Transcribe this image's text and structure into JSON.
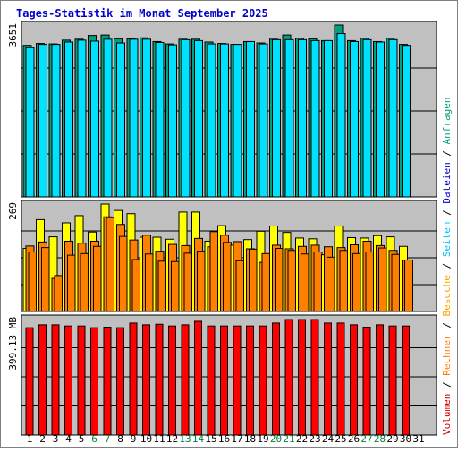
{
  "chart_data": {
    "type": "bar",
    "title": "Tages-Statistik im Monat September 2025",
    "categories": [
      "1",
      "2",
      "3",
      "4",
      "5",
      "6",
      "7",
      "8",
      "9",
      "10",
      "11",
      "12",
      "13",
      "14",
      "15",
      "16",
      "17",
      "18",
      "19",
      "20",
      "21",
      "22",
      "23",
      "24",
      "25",
      "26",
      "27",
      "28",
      "29",
      "30",
      "31"
    ],
    "weekend_days": [
      "6",
      "7",
      "13",
      "14",
      "20",
      "21",
      "27",
      "28"
    ],
    "panels": [
      {
        "name": "anfragen-dateien",
        "max_label": "3651",
        "ymax": 3651,
        "series": [
          {
            "name": "Anfragen",
            "color": "#00A080",
            "values": [
              3220,
              3260,
              3250,
              3330,
              3350,
              3430,
              3440,
              3360,
              3360,
              3380,
              3300,
              3250,
              3350,
              3350,
              3290,
              3260,
              3240,
              3300,
              3270,
              3350,
              3440,
              3370,
              3360,
              3320,
              3651,
              3320,
              3370,
              3300,
              3370,
              3240,
              null
            ]
          },
          {
            "name": "Dateien",
            "color": "#00E0FF",
            "values": [
              3170,
              3240,
              3240,
              3290,
              3330,
              3310,
              3350,
              3270,
              3350,
              3350,
              3280,
              3230,
              3340,
              3320,
              3250,
              3250,
              3240,
              3300,
              3250,
              3340,
              3340,
              3340,
              3320,
              3320,
              3470,
              3300,
              3340,
              3290,
              3340,
              3220,
              null
            ]
          }
        ]
      },
      {
        "name": "seiten-besuche-rechner",
        "max_label": "269",
        "ymax": 269,
        "series": [
          {
            "name": "Seiten",
            "color": "#FFFF00",
            "values": [
              158,
              230,
              187,
              222,
              240,
              199,
              269,
              253,
              245,
              186,
              186,
              181,
              249,
              249,
              176,
              215,
              166,
              180,
              201,
              214,
              198,
              184,
              182,
              142,
              214,
              185,
              184,
              190,
              187,
              163,
              null
            ]
          },
          {
            "name": "Besuche",
            "color": "#FF8000",
            "values": [
              164,
              174,
              83,
              176,
              171,
              176,
              237,
              218,
              179,
              191,
              151,
              168,
              165,
              183,
              162,
              191,
              175,
              157,
              123,
              166,
              157,
              163,
              166,
              162,
              160,
              167,
              176,
              165,
              153,
              128,
              null
            ]
          },
          {
            "name": "Rechner",
            "color": "#FF8000",
            "values": [
              149,
              160,
              90,
              141,
              145,
              163,
              235,
              188,
              130,
              144,
              126,
              125,
              146,
              151,
              200,
              173,
              127,
              156,
              145,
              158,
              153,
              144,
              149,
              136,
              153,
              145,
              149,
              159,
              143,
              129,
              null
            ]
          }
        ]
      },
      {
        "name": "volumen",
        "max_label": "399.13 MB",
        "ymax": 399.13,
        "series": [
          {
            "name": "Volumen",
            "color": "#FF0000",
            "values": [
              368,
              378,
              378,
              374,
              374,
              368,
              370,
              368,
              384,
              378,
              380,
              374,
              378,
              390,
              374,
              374,
              374,
              374,
              374,
              384,
              396,
              396,
              396,
              384,
              384,
              378,
              370,
              378,
              374,
              374,
              null
            ]
          }
        ]
      }
    ],
    "legend_right": [
      {
        "label": "Volumen",
        "color": "#CC0000"
      },
      {
        "label": "/",
        "color": "#000000"
      },
      {
        "label": "Rechner",
        "color": "#FF8000"
      },
      {
        "label": "/",
        "color": "#000000"
      },
      {
        "label": "Besuche",
        "color": "#FFA000"
      },
      {
        "label": "/",
        "color": "#000000"
      },
      {
        "label": "Seiten",
        "color": "#00C0FF"
      },
      {
        "label": "/",
        "color": "#000000"
      },
      {
        "label": "Dateien",
        "color": "#0000CC"
      },
      {
        "label": "/",
        "color": "#000000"
      },
      {
        "label": "Anfragen",
        "color": "#00A080"
      }
    ],
    "colors": {
      "title": "#0000CC",
      "panel_bg": "#C0C0C0",
      "weekend_label": "#008040",
      "weekday_label": "#000000"
    }
  }
}
